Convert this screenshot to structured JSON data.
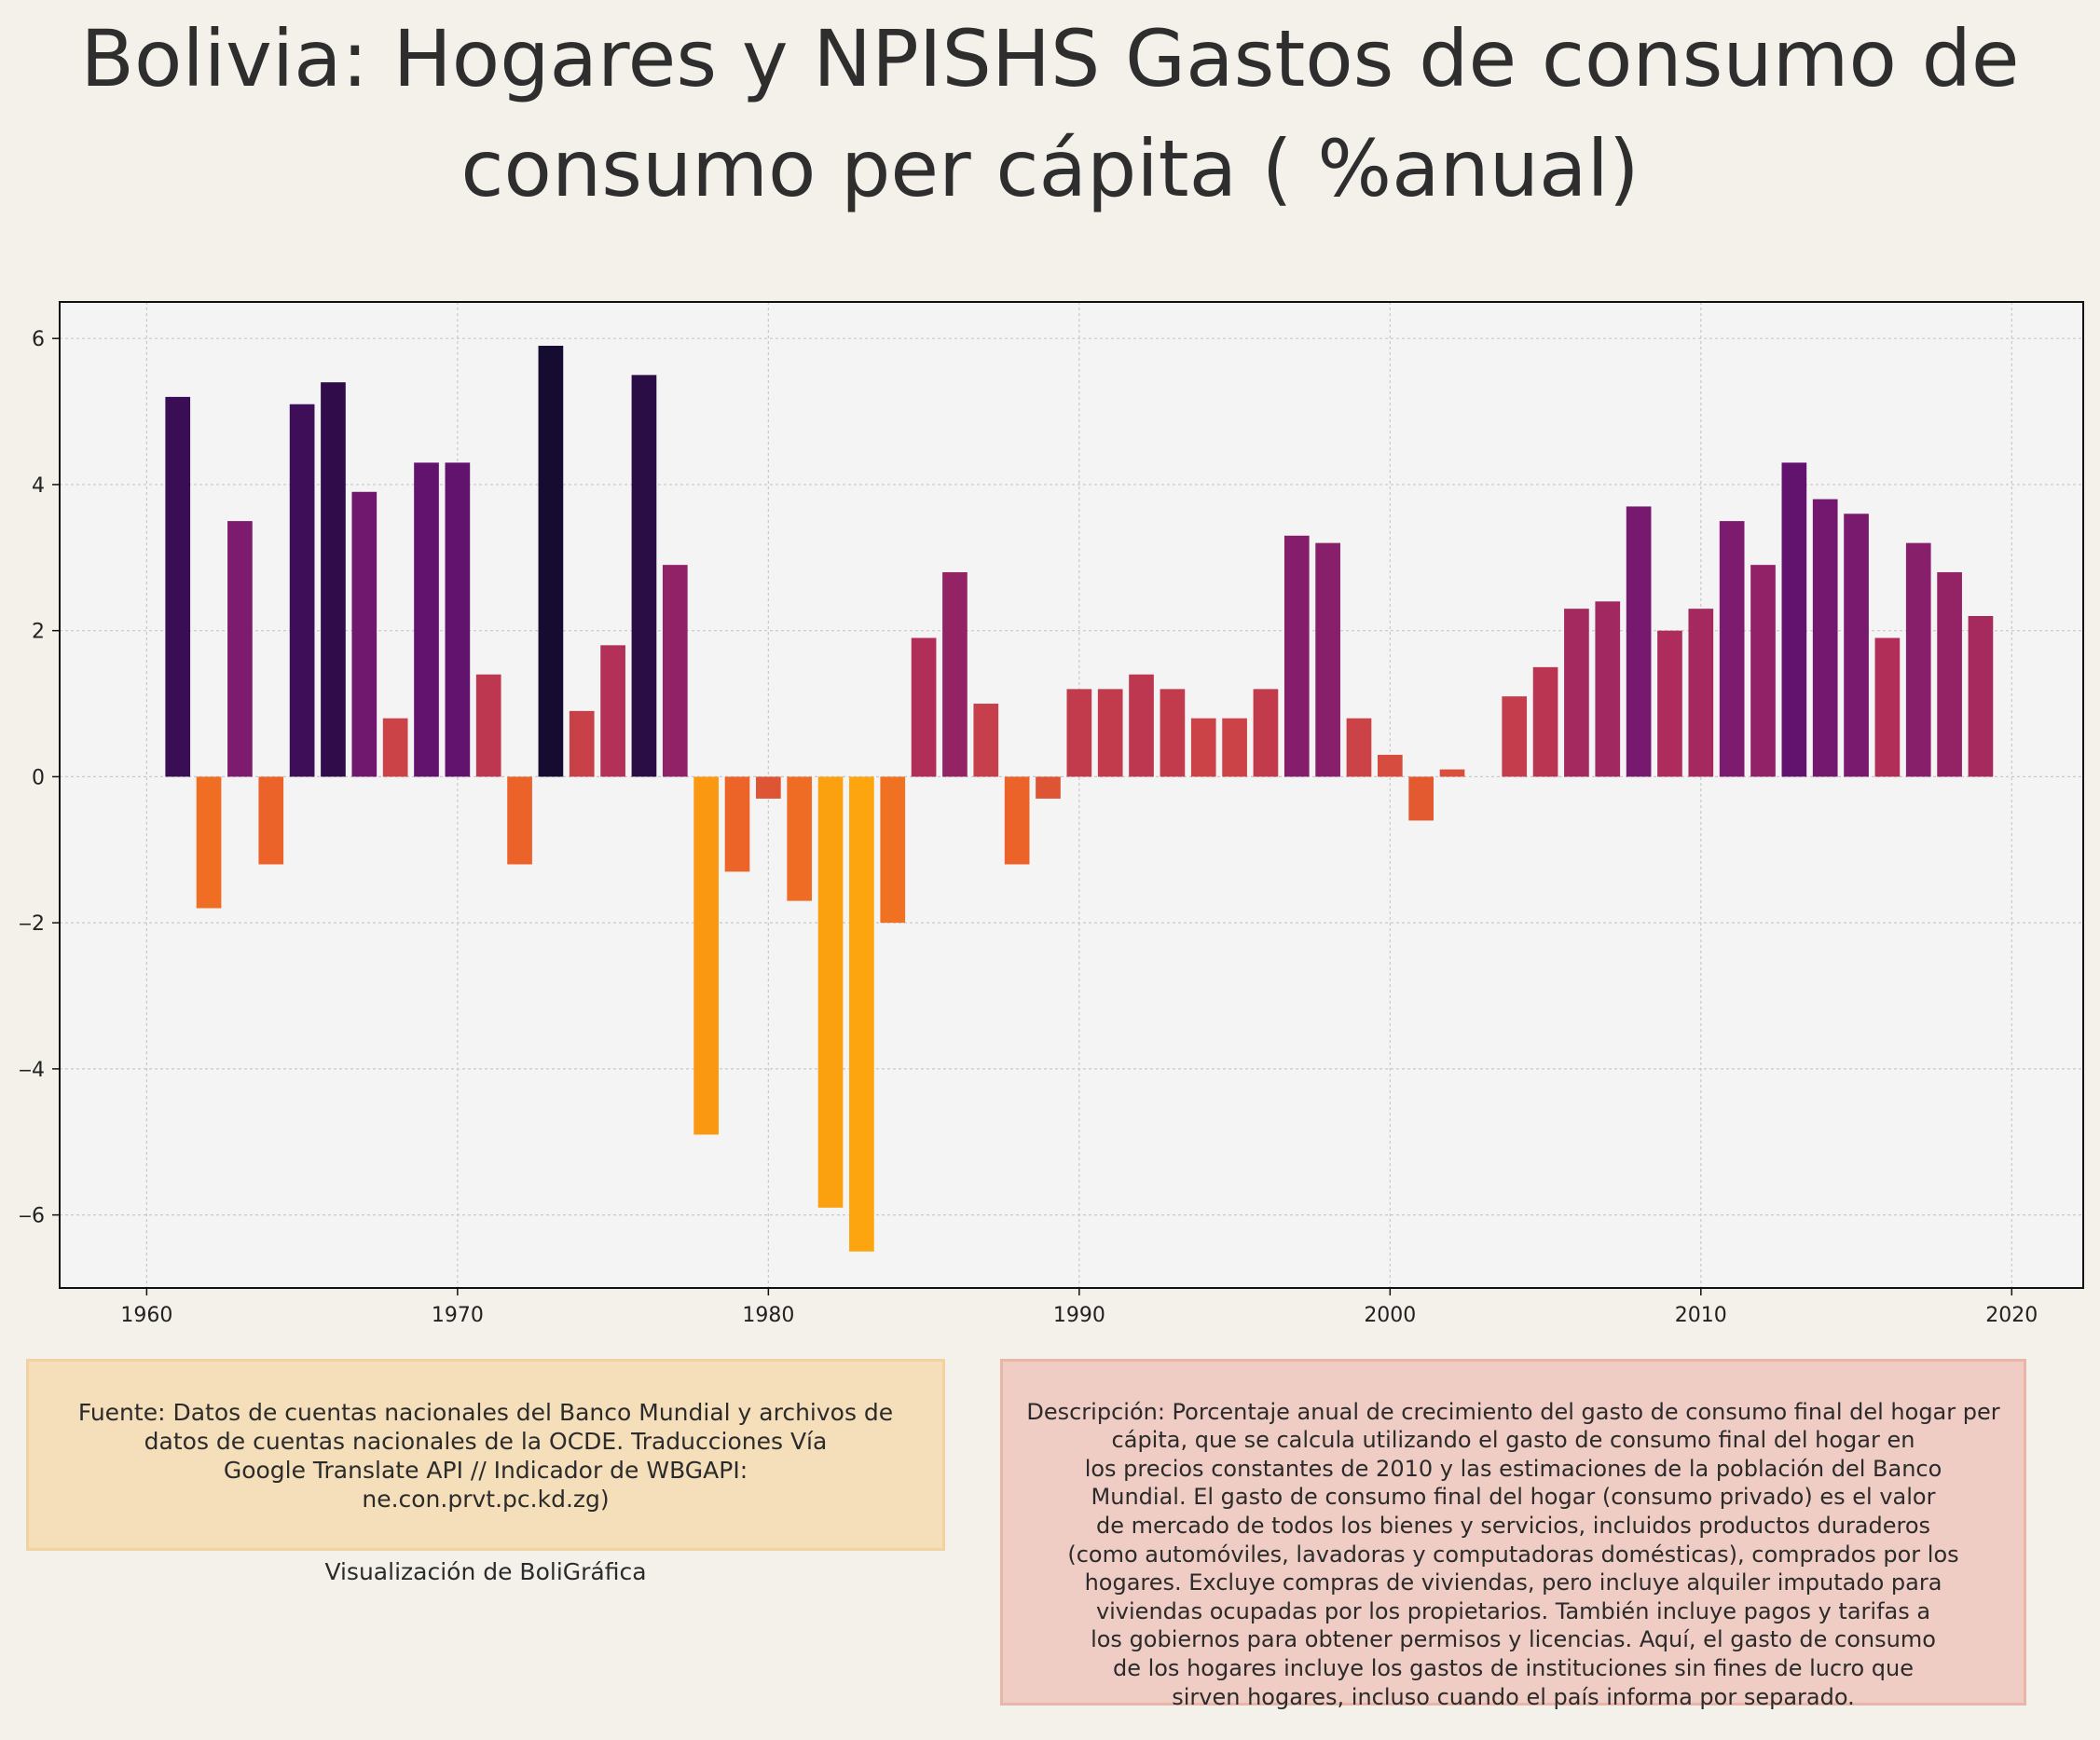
{
  "title": "Bolivia:  Hogares y NPISHS Gastos de consumo de\nconsumo per cápita ( %anual)",
  "chart_data": {
    "type": "bar",
    "title": "Bolivia:  Hogares y NPISHS Gastos de consumo de consumo per cápita ( %anual)",
    "xlabel": "",
    "ylabel": "",
    "xlim": [
      1957.2,
      2022.3
    ],
    "ylim": [
      -7.0,
      6.5
    ],
    "grid": true,
    "x_ticks": [
      1960,
      1970,
      1980,
      1990,
      2000,
      2010,
      2020
    ],
    "x_tick_labels": [
      "1960",
      "1970",
      "1980",
      "1990",
      "2000",
      "2010",
      "2020"
    ],
    "y_ticks": [
      -6,
      -4,
      -2,
      0,
      2,
      4,
      6
    ],
    "y_tick_labels": [
      "‒6",
      "‒4",
      "‒2",
      "0",
      "2",
      "4",
      "6"
    ],
    "colormap": "inferno (reversed, by value)",
    "x": [
      1961,
      1962,
      1963,
      1964,
      1965,
      1966,
      1967,
      1968,
      1969,
      1970,
      1971,
      1972,
      1973,
      1974,
      1975,
      1976,
      1977,
      1978,
      1979,
      1980,
      1981,
      1982,
      1983,
      1984,
      1985,
      1986,
      1987,
      1988,
      1989,
      1990,
      1991,
      1992,
      1993,
      1994,
      1995,
      1996,
      1997,
      1998,
      1999,
      2000,
      2001,
      2002,
      2003,
      2004,
      2005,
      2006,
      2007,
      2008,
      2009,
      2010,
      2011,
      2012,
      2013,
      2014,
      2015,
      2016,
      2017,
      2018,
      2019
    ],
    "values": [
      5.2,
      -1.8,
      3.5,
      -1.2,
      5.1,
      5.4,
      3.9,
      0.8,
      4.3,
      4.3,
      1.4,
      -1.2,
      5.9,
      0.9,
      1.8,
      5.5,
      2.9,
      -4.9,
      -1.3,
      -0.3,
      -1.7,
      -5.9,
      -6.5,
      -2.0,
      1.9,
      2.8,
      1.0,
      -1.2,
      -0.3,
      1.2,
      1.2,
      1.4,
      1.2,
      0.8,
      0.8,
      1.2,
      3.3,
      3.2,
      0.8,
      0.3,
      -0.6,
      0.1,
      0.0,
      1.1,
      1.5,
      2.3,
      2.4,
      3.7,
      2.0,
      2.3,
      3.5,
      2.9,
      4.3,
      3.8,
      3.6,
      1.9,
      3.2,
      2.8,
      2.2
    ]
  },
  "source": {
    "text": "Fuente: Datos de cuentas nacionales del Banco Mundial y archivos de\ndatos de cuentas nacionales de la OCDE. Traducciones Vía\nGoogle Translate API // Indicador de WBGAPI:\nne.con.prvt.pc.kd.zg)",
    "credit": "Visualización de BoliGráfica"
  },
  "description": "Descripción: Porcentaje anual de crecimiento del gasto de consumo final del hogar per\ncápita, que se calcula utilizando el gasto de consumo final del hogar en\nlos precios constantes de 2010 y las estimaciones de la población del Banco\nMundial. El gasto de consumo final del hogar (consumo privado) es el valor\nde mercado de todos los bienes y servicios, incluidos productos duraderos\n(como automóviles, lavadoras y computadoras domésticas), comprados por los\nhogares. Excluye compras de viviendas, pero incluye alquiler imputado para\nviviendas ocupadas por los propietarios. También incluye pagos y tarifas a\nlos gobiernos para obtener permisos y licencias. Aquí, el gasto de consumo\nde los hogares incluye los gastos de instituciones sin fines de lucro que\nsirven hogares, incluso cuando el país informa por separado."
}
